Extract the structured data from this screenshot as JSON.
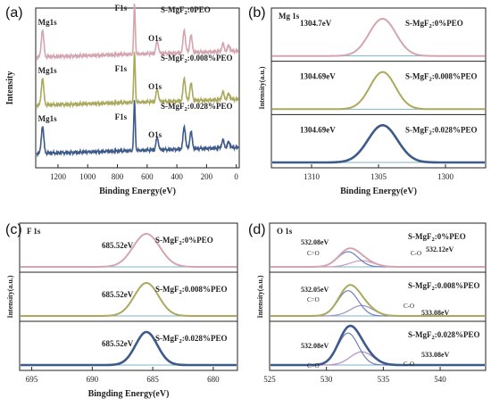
{
  "chart_data": [
    {
      "panel": "(a)",
      "type": "line",
      "xlabel": "Binding Energy(eV)",
      "ylabel": "Intensity",
      "xlim": [
        1350,
        -20
      ],
      "x_ticks": [
        1200,
        1000,
        800,
        600,
        400,
        200,
        0
      ],
      "stacked": true,
      "series": [
        {
          "name": "S-MgF2:0PEO",
          "label_main": "S-MgF",
          "label_sub": "2",
          "label_tail": ":0PEO",
          "color": "#d4a5b0",
          "peaks": [
            {
              "x": 1304,
              "h": 0.55,
              "label": "Mg1s"
            },
            {
              "x": 685,
              "h": 1.0,
              "label": "F1s"
            },
            {
              "x": 532,
              "h": 0.25,
              "label": "O1s"
            },
            {
              "x": 350,
              "h": 0.45
            },
            {
              "x": 305,
              "h": 0.35
            },
            {
              "x": 90,
              "h": 0.15
            },
            {
              "x": 50,
              "h": 0.12
            }
          ]
        },
        {
          "name": "S-MgF2:0.008%PEO",
          "label_main": "S-MgF",
          "label_sub": "2",
          "label_tail": ":0.008%PEO",
          "color": "#aaa95c",
          "peaks": [
            {
              "x": 1304,
              "h": 0.55,
              "label": "Mg1s"
            },
            {
              "x": 685,
              "h": 1.0,
              "label": "F1s"
            },
            {
              "x": 532,
              "h": 0.25,
              "label": "O1s"
            },
            {
              "x": 350,
              "h": 0.45
            },
            {
              "x": 305,
              "h": 0.35
            },
            {
              "x": 90,
              "h": 0.15
            },
            {
              "x": 50,
              "h": 0.12
            }
          ]
        },
        {
          "name": "S-MgF2:0.028%PEO",
          "label_main": "S-MgF",
          "label_sub": "2",
          "label_tail": ":0.028%PEO",
          "color": "#3d5a8a",
          "peaks": [
            {
              "x": 1304,
              "h": 0.55,
              "label": "Mg1s"
            },
            {
              "x": 685,
              "h": 1.0,
              "label": "F1s"
            },
            {
              "x": 532,
              "h": 0.25,
              "label": "O1s"
            },
            {
              "x": 350,
              "h": 0.45
            },
            {
              "x": 305,
              "h": 0.35
            },
            {
              "x": 90,
              "h": 0.15
            },
            {
              "x": 50,
              "h": 0.12
            }
          ]
        }
      ]
    },
    {
      "panel": "(b)",
      "type": "line",
      "title": "Mg 1s",
      "xlabel": "Binding Energy(eV)",
      "ylabel": "Intensity(a.u.)",
      "xlim": [
        1313,
        1297
      ],
      "x_ticks": [
        1310,
        1305,
        1300
      ],
      "stacked": true,
      "series": [
        {
          "name": "S-MgF2:0%PEO",
          "label_main": "S-MgF",
          "label_sub": "2",
          "label_tail": ":0%PEO",
          "color": "#d4a5b0",
          "peak_x": 1304.7,
          "peak_label": "1304.7eV",
          "width": 1.0
        },
        {
          "name": "S-MgF2:0.008%PEO",
          "label_main": "S-MgF",
          "label_sub": "2",
          "label_tail": ":0.008%PEO",
          "color": "#aaa95c",
          "peak_x": 1304.69,
          "peak_label": "1304.69eV",
          "width": 0.95
        },
        {
          "name": "S-MgF2:0.028%PEO",
          "label_main": "S-MgF",
          "label_sub": "2",
          "label_tail": ":0.028%PEO",
          "color": "#3d5a8a",
          "peak_x": 1304.69,
          "peak_label": "1304.69eV",
          "width": 1.1
        }
      ]
    },
    {
      "panel": "(c)",
      "type": "line",
      "title": "F 1s",
      "xlabel": "Bingding Energy(eV)",
      "ylabel": "Intensity(a.u.)",
      "xlim": [
        696,
        678
      ],
      "x_ticks": [
        695,
        690,
        685,
        680
      ],
      "stacked": true,
      "series": [
        {
          "name": "S-MgF2:0%PEO",
          "label_main": "S-MgF",
          "label_sub": "2",
          "label_tail": ":0%PEO",
          "color": "#d4a5b0",
          "peak_x": 685.52,
          "peak_label": "685.52eV",
          "width": 1.1
        },
        {
          "name": "S-MgF2:0.008%PEO",
          "label_main": "S-MgF",
          "label_sub": "2",
          "label_tail": ":0.008%PEO",
          "color": "#aaa95c",
          "peak_x": 685.52,
          "peak_label": "685.52eV",
          "width": 1.0
        },
        {
          "name": "S-MgF2:0.028%PEO",
          "label_main": "S-MgF",
          "label_sub": "2",
          "label_tail": ":0.028%PEO",
          "color": "#3d5a8a",
          "peak_x": 685.52,
          "peak_label": "685.52eV",
          "width": 0.9
        }
      ]
    },
    {
      "panel": "(d)",
      "type": "line",
      "title": "O 1s",
      "ylabel": "Intensity(a.u.)",
      "xlim": [
        525,
        544
      ],
      "x_ticks": [
        525,
        530,
        535,
        540
      ],
      "stacked": true,
      "series": [
        {
          "name": "S-MgF2:0%PEO",
          "label_main": "S-MgF",
          "label_sub": "2",
          "label_tail": ":0%PEO",
          "color": "#d4a5b0",
          "peak1_x": 532.08,
          "peak1_label": "532.08eV",
          "peak2_x": 532.12,
          "peak2_label": "532.12eV",
          "bond1": "C=O",
          "bond2": "C-O"
        },
        {
          "name": "S-MgF2:0.008%PEO",
          "label_main": "S-MgF",
          "label_sub": "2",
          "label_tail": ":0.008%PEO",
          "color": "#aaa95c",
          "peak1_x": 532.05,
          "peak1_label": "532.05eV",
          "peak2_x": 533.08,
          "peak2_label": "533.08eV",
          "bond1": "C=O",
          "bond2": "C-O"
        },
        {
          "name": "S-MgF2:0.028%PEO",
          "label_main": "S-MgF",
          "label_sub": "2",
          "label_tail": ":0.028%PEO",
          "color": "#3d5a8a",
          "peak1_x": 532.08,
          "peak1_label": "532.08eV",
          "peak2_x": 533.08,
          "peak2_label": "533.08eV",
          "bond1": "C=O",
          "bond2": "C-O"
        }
      ]
    }
  ]
}
